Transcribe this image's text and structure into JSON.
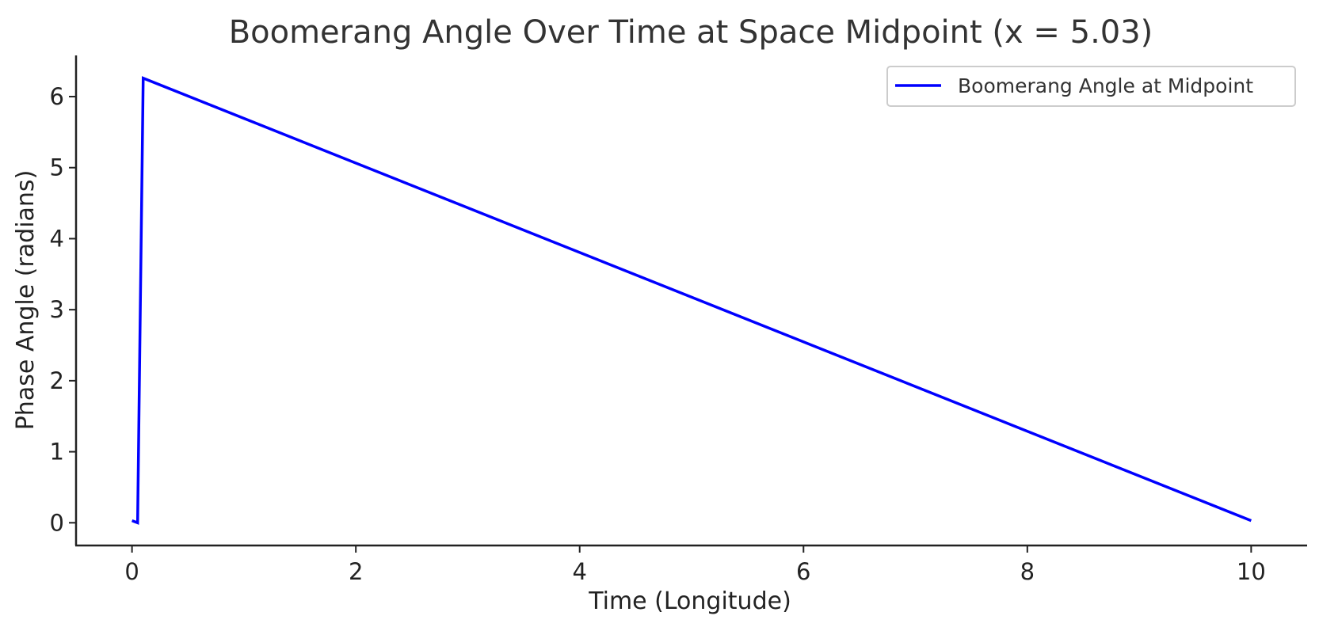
{
  "chart_data": {
    "type": "line",
    "title": "Boomerang Angle Over Time at Space Midpoint (x = 5.03)",
    "xlabel": "Time (Longitude)",
    "ylabel": "Phase Angle (radians)",
    "xlim": [
      -0.5,
      10.5
    ],
    "ylim": [
      -0.32,
      6.58
    ],
    "xticks": [
      0,
      2,
      4,
      6,
      8,
      10
    ],
    "yticks": [
      0,
      1,
      2,
      3,
      4,
      5,
      6
    ],
    "grid": false,
    "legend_position": "top-right",
    "series": [
      {
        "name": "Boomerang Angle at Midpoint",
        "color": "#0000ff",
        "x": [
          0.0,
          0.05,
          0.1,
          10.0
        ],
        "y": [
          0.03,
          0.0,
          6.26,
          0.03
        ]
      }
    ]
  }
}
